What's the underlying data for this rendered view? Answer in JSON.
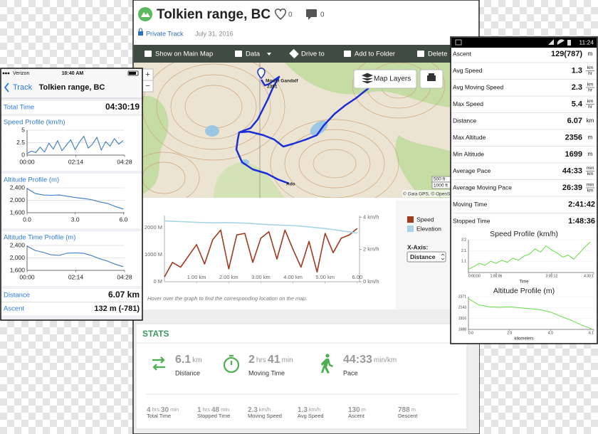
{
  "web": {
    "title": "Tolkien range, BC",
    "likes": 0,
    "comments": 0,
    "privacy": "Private Track",
    "date": "July 31, 2016",
    "toolbar": [
      "Show on Main Map",
      "Data",
      "Drive to",
      "Add to Folder",
      "Delete"
    ],
    "map": {
      "zoom": [
        "+",
        "−"
      ],
      "peak_name": "Mount Gandalf",
      "peak_elevation": "2391",
      "end_label": "Ado",
      "layers_button": "Map Layers",
      "attribution": "© Gaia GPS, © OpenS",
      "scale": [
        "500 ft",
        "1000 ft"
      ]
    },
    "chart": {
      "xlim": [
        0,
        6.07
      ],
      "xticks": [
        {
          "value": 1,
          "label": "1.00 km"
        },
        {
          "value": 2,
          "label": "2.00 km"
        },
        {
          "value": 3,
          "label": "3.00 km"
        },
        {
          "value": 4,
          "label": "4.00 km"
        },
        {
          "value": 5,
          "label": "5.00 km"
        },
        {
          "value": 6,
          "label": "6.00"
        }
      ],
      "ylim": [
        0,
        2450
      ],
      "yticks": [
        {
          "value": 0,
          "label": "0 M"
        },
        {
          "value": 1000,
          "label": "1000 M"
        },
        {
          "value": 2000,
          "label": "2000 M"
        }
      ],
      "y2lim": [
        0,
        4.1
      ],
      "y2ticks": [
        {
          "value": 0,
          "label": "0 km/h"
        },
        {
          "value": 2,
          "label": "2 km/h"
        },
        {
          "value": 4,
          "label": "4 km/h"
        }
      ],
      "series": [
        {
          "name": "Speed",
          "color": "#a0391d",
          "axis": "y2",
          "x": [
            0,
            0.25,
            0.5,
            0.75,
            1,
            1.25,
            1.5,
            1.75,
            2,
            2.25,
            2.5,
            2.75,
            3,
            3.25,
            3.5,
            3.75,
            4,
            4.25,
            4.5,
            4.75,
            5,
            5.25,
            5.5,
            5.75,
            6
          ],
          "values": [
            0.3,
            1.2,
            0.9,
            1.6,
            2.3,
            1.1,
            2.6,
            3.2,
            0.8,
            2.9,
            3.0,
            1.2,
            2.7,
            3.1,
            1.4,
            3.2,
            2.0,
            0.9,
            2.5,
            0.6,
            3.0,
            1.8,
            2.7,
            2.9,
            3.3
          ]
        },
        {
          "name": "Elevation",
          "color": "#a9d4e8",
          "x": [
            0,
            0.5,
            1,
            1.5,
            2,
            2.5,
            3,
            3.5,
            4,
            4.5,
            5,
            5.5,
            6
          ],
          "values": [
            2250,
            2230,
            2200,
            2180,
            2190,
            2170,
            2130,
            2100,
            2080,
            2030,
            1970,
            1890,
            1800
          ]
        }
      ],
      "x_axis_label": "X-Axis:",
      "x_axis_choice": "Distance",
      "caption": "Hover over the graph to find the corresponding location on the map."
    },
    "stats": {
      "heading": "STATS",
      "main": [
        {
          "parts": [
            6.1,
            "km"
          ],
          "label": "Distance"
        },
        {
          "parts": [
            2,
            "hrs",
            41,
            "min"
          ],
          "label": "Moving Time"
        },
        {
          "parts": [
            "44:33",
            "min/km"
          ],
          "label": "Pace"
        }
      ],
      "secondary": [
        {
          "parts": [
            4,
            "hrs",
            30,
            "min"
          ],
          "label": "Total Time"
        },
        {
          "parts": [
            1,
            "hrs",
            48,
            "min"
          ],
          "label": "Stopped Time"
        },
        {
          "parts": [
            2.3,
            "km/h"
          ],
          "label": "Moving Speed"
        },
        {
          "parts": [
            1.3,
            "km/h"
          ],
          "label": "Avg Speed"
        },
        {
          "parts": [
            130,
            "m"
          ],
          "label": "Ascent"
        },
        {
          "parts": [
            788,
            "m"
          ],
          "label": "Descent"
        }
      ]
    }
  },
  "left_phone": {
    "carrier": "Verizon",
    "time": "10:40 AM",
    "back": "Track",
    "title": "Tolkien range, BC",
    "total_time_label": "Total Time",
    "total_time": "04:30:19",
    "charts": [
      {
        "title": "Speed Profile (km/h)",
        "color": "#3b7bbf",
        "xlim": [
          0,
          268
        ],
        "xticks": [
          {
            "value": 0,
            "label": "00:00"
          },
          {
            "value": 134,
            "label": "02:14"
          },
          {
            "value": 268,
            "label": "04:28"
          }
        ],
        "ylim": [
          0,
          5
        ],
        "yticks": [
          0,
          2.5,
          5
        ],
        "series": [
          {
            "color": "#3b7bbf",
            "x": [
              0,
              12,
              24,
              36,
              48,
              60,
              72,
              84,
              96,
              108,
              120,
              132,
              144,
              156,
              168,
              180,
              192,
              204,
              216,
              228,
              240,
              252,
              264
            ],
            "values": [
              0.3,
              0.8,
              0.5,
              1.6,
              0.6,
              2.4,
              1.2,
              2.9,
              0.9,
              2.0,
              3.1,
              1.1,
              2.6,
              3.8,
              1.4,
              2.2,
              3.6,
              1.0,
              2.7,
              1.8,
              3.3,
              2.2,
              2.9
            ]
          }
        ]
      },
      {
        "title": "Altitude Profile (m)",
        "xlim": [
          0,
          6.07
        ],
        "xticks": [
          {
            "value": 0,
            "label": "0.0"
          },
          {
            "value": 3,
            "label": "3.0"
          },
          {
            "value": 6,
            "label": "6.0"
          }
        ],
        "ylim": [
          1600,
          2400
        ],
        "yticks": [
          {
            "value": 1600,
            "label": "1,600"
          },
          {
            "value": 2000,
            "label": "2,000"
          },
          {
            "value": 2400,
            "label": "2,400"
          }
        ],
        "series": [
          {
            "color": "#3b7bbf",
            "x": [
              0,
              0.5,
              1,
              1.5,
              2,
              2.5,
              3,
              3.5,
              4,
              4.5,
              5,
              5.5,
              6
            ],
            "values": [
              2380,
              2220,
              2170,
              2160,
              2170,
              2130,
              2090,
              2060,
              2020,
              1950,
              1900,
              1800,
              1720
            ]
          }
        ]
      },
      {
        "title": "Altitude Time Profile (m)",
        "xlim": [
          0,
          268
        ],
        "xticks": [
          {
            "value": 0,
            "label": "00:00"
          },
          {
            "value": 134,
            "label": "02:14"
          },
          {
            "value": 268,
            "label": "04:28"
          }
        ],
        "ylim": [
          1600,
          2400
        ],
        "yticks": [
          {
            "value": 1600,
            "label": "1,600"
          },
          {
            "value": 2000,
            "label": "2,000"
          },
          {
            "value": 2400,
            "label": "2,400"
          }
        ],
        "series": [
          {
            "color": "#3b7bbf",
            "x": [
              0,
              22,
              44,
              66,
              88,
              110,
              132,
              154,
              176,
              198,
              220,
              242,
              264
            ],
            "values": [
              2380,
              2240,
              2180,
              2100,
              2080,
              2150,
              2160,
              2150,
              2080,
              1980,
              1900,
              1800,
              1720
            ]
          }
        ]
      }
    ],
    "distance_label": "Distance",
    "distance": "6.07 km",
    "ascent_label": "Ascent",
    "ascent": "132 m (-781)"
  },
  "right_phone": {
    "time": "11:24",
    "rows": [
      {
        "label": "Ascent",
        "value": "129(787)",
        "unit": "m"
      },
      {
        "label": "Avg Speed",
        "value": 1.3,
        "unit": [
          "km",
          "hr"
        ]
      },
      {
        "label": "Avg Moving Speed",
        "value": 2.3,
        "unit": [
          "km",
          "hr"
        ]
      },
      {
        "label": "Max Speed",
        "value": 5.4,
        "unit": [
          "km",
          "hr"
        ]
      },
      {
        "label": "Distance",
        "value": 6.07,
        "unit": "km"
      },
      {
        "label": "Max Altitude",
        "value": 2356,
        "unit": "m"
      },
      {
        "label": "Min Altitude",
        "value": 1699,
        "unit": "m"
      },
      {
        "label": "Average Pace",
        "value": "44:33",
        "unit": [
          "min",
          "km"
        ]
      },
      {
        "label": "Average Moving Pace",
        "value": "26:39",
        "unit": [
          "min",
          "km"
        ]
      },
      {
        "label": "Moving Time",
        "value": "2:41:42"
      },
      {
        "label": "Stopped Time",
        "value": "1:48:36"
      }
    ],
    "charts": [
      {
        "title": "Speed Profile (km/h)",
        "x_label": "Time",
        "xlim": [
          0,
          271
        ],
        "xticks": [
          {
            "value": 0,
            "label": "0:00:00"
          },
          {
            "value": 60,
            "label": "1:00:06"
          },
          {
            "value": 180,
            "label": "3:00:12"
          },
          {
            "value": 271,
            "label": "4:30:1"
          }
        ],
        "ylim": [
          0,
          3.2
        ],
        "yticks": [
          1.1,
          2.1,
          3.2
        ],
        "series": [
          {
            "color": "#66dd44",
            "x": [
              0,
              12,
              24,
              36,
              48,
              60,
              72,
              84,
              96,
              108,
              120,
              132,
              144,
              156,
              168,
              180,
              192,
              204,
              216,
              228,
              240,
              252,
              264
            ],
            "values": [
              0.3,
              0.6,
              0.9,
              0.7,
              1.1,
              0.9,
              1.2,
              1.0,
              1.4,
              1.2,
              1.6,
              1.8,
              2.3,
              2.0,
              2.6,
              2.2,
              1.9,
              1.5,
              1.7,
              1.3,
              1.9,
              2.5,
              3.0
            ]
          }
        ]
      },
      {
        "title": "Altitude Profile (m)",
        "x_label": "kilometers",
        "xlim": [
          0,
          6.1
        ],
        "xticks": [
          {
            "value": 0,
            "label": "0.0"
          },
          {
            "value": 2,
            "label": "2.0"
          },
          {
            "value": 4,
            "label": "4.0"
          },
          {
            "value": 6.1,
            "label": "6.1"
          }
        ],
        "ylim": [
          1688,
          2371
        ],
        "yticks": [
          1688,
          1916,
          2143,
          2371
        ],
        "series": [
          {
            "color": "#66dd44",
            "x": [
              0,
              0.5,
              1,
              1.5,
              2,
              2.5,
              3,
              3.5,
              4,
              4.5,
              5,
              5.5,
              6
            ],
            "values": [
              2330,
              2200,
              2160,
              2150,
              2160,
              2140,
              2120,
              2100,
              2050,
              1960,
              1880,
              1780,
              1700
            ]
          }
        ]
      }
    ]
  }
}
